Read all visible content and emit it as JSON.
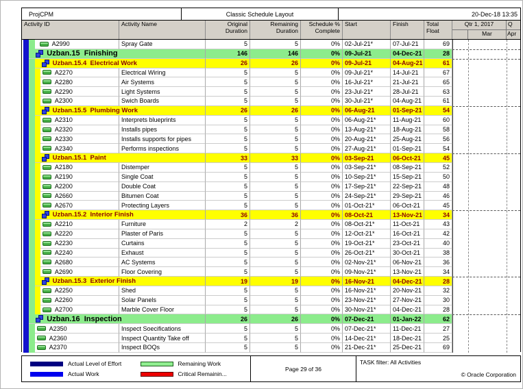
{
  "title_bar": {
    "left": "ProjCPM",
    "center": "Classic Schedule Layout",
    "right": "20-Dec-18 13:35"
  },
  "columns": {
    "activity_id": "Activity ID",
    "activity_name": "Activity Name",
    "original_duration": "Original Duration",
    "remaining_duration": "Remaining\nDuration",
    "schedule_pct": "Schedule %\nComplete",
    "start": "Start",
    "finish": "Finish",
    "total_float": "Total Float"
  },
  "timeline": {
    "quarter1": "Qtr 1, 2017",
    "quarter2": "Q",
    "month_blank": "",
    "month1": "Mar",
    "month2": "Apr"
  },
  "colors": {
    "band_green": "#8cec8c",
    "band_yellow": "#ffff00",
    "project_strip_blue": "#1313cd",
    "group_label_maroon": "#8b0000",
    "header_gray": "#d4d0c8"
  },
  "rows": [
    {
      "kind": "activity",
      "strips": 2,
      "extra_indent": 4,
      "id": "A2990",
      "name": "Spray Gate",
      "orig_dur": "5",
      "rem_dur": "5",
      "pct": "0%",
      "start": "02-Jul-21*",
      "finish": "07-Jul-21",
      "total_float": "69"
    },
    {
      "kind": "group2",
      "dash": true,
      "label": "Uzban.15  Finishing",
      "orig_dur": "146",
      "rem_dur": "146",
      "pct": "0%",
      "start": "09-Jul-21",
      "finish": "04-Dec-21",
      "total_float": "28"
    },
    {
      "kind": "group3",
      "dash": true,
      "label": "Uzban.15.4  Electrical Work",
      "orig_dur": "26",
      "rem_dur": "26",
      "pct": "0%",
      "start": "09-Jul-21",
      "finish": "04-Aug-21",
      "total_float": "61"
    },
    {
      "kind": "activity",
      "strips": 3,
      "id": "A2270",
      "name": "Electrical Wiring",
      "orig_dur": "5",
      "rem_dur": "5",
      "pct": "0%",
      "start": "09-Jul-21*",
      "finish": "14-Jul-21",
      "total_float": "67"
    },
    {
      "kind": "activity",
      "strips": 3,
      "id": "A2280",
      "name": "Air Systems",
      "orig_dur": "5",
      "rem_dur": "5",
      "pct": "0%",
      "start": "16-Jul-21*",
      "finish": "21-Jul-21",
      "total_float": "65"
    },
    {
      "kind": "activity",
      "strips": 3,
      "id": "A2290",
      "name": "Light Systems",
      "orig_dur": "5",
      "rem_dur": "5",
      "pct": "0%",
      "start": "23-Jul-21*",
      "finish": "28-Jul-21",
      "total_float": "63"
    },
    {
      "kind": "activity",
      "strips": 3,
      "id": "A2300",
      "name": "Swich Boards",
      "orig_dur": "5",
      "rem_dur": "5",
      "pct": "0%",
      "start": "30-Jul-21*",
      "finish": "04-Aug-21",
      "total_float": "61"
    },
    {
      "kind": "group3",
      "dash": true,
      "label": "Uzban.15.5  Plumbing Work",
      "orig_dur": "26",
      "rem_dur": "26",
      "pct": "0%",
      "start": "06-Aug-21",
      "finish": "01-Sep-21",
      "total_float": "54"
    },
    {
      "kind": "activity",
      "strips": 3,
      "id": "A2310",
      "name": "Interprets blueprints",
      "orig_dur": "5",
      "rem_dur": "5",
      "pct": "0%",
      "start": "06-Aug-21*",
      "finish": "11-Aug-21",
      "total_float": "60"
    },
    {
      "kind": "activity",
      "strips": 3,
      "id": "A2320",
      "name": "Installs pipes",
      "orig_dur": "5",
      "rem_dur": "5",
      "pct": "0%",
      "start": "13-Aug-21*",
      "finish": "18-Aug-21",
      "total_float": "58"
    },
    {
      "kind": "activity",
      "strips": 3,
      "id": "A2330",
      "name": "Installs supports for pipes",
      "orig_dur": "5",
      "rem_dur": "5",
      "pct": "0%",
      "start": "20-Aug-21*",
      "finish": "25-Aug-21",
      "total_float": "56"
    },
    {
      "kind": "activity",
      "strips": 3,
      "id": "A2340",
      "name": "Performs inspections",
      "orig_dur": "5",
      "rem_dur": "5",
      "pct": "0%",
      "start": "27-Aug-21*",
      "finish": "01-Sep-21",
      "total_float": "54"
    },
    {
      "kind": "group3",
      "dash": true,
      "label": "Uzban.15.1  Paint",
      "orig_dur": "33",
      "rem_dur": "33",
      "pct": "0%",
      "start": "03-Sep-21",
      "finish": "06-Oct-21",
      "total_float": "45"
    },
    {
      "kind": "activity",
      "strips": 3,
      "id": "A2180",
      "name": "Distemper",
      "orig_dur": "5",
      "rem_dur": "5",
      "pct": "0%",
      "start": "03-Sep-21*",
      "finish": "08-Sep-21",
      "total_float": "52"
    },
    {
      "kind": "activity",
      "strips": 3,
      "id": "A2190",
      "name": "Single Coat",
      "orig_dur": "5",
      "rem_dur": "5",
      "pct": "0%",
      "start": "10-Sep-21*",
      "finish": "15-Sep-21",
      "total_float": "50"
    },
    {
      "kind": "activity",
      "strips": 3,
      "id": "A2200",
      "name": "Double Coat",
      "orig_dur": "5",
      "rem_dur": "5",
      "pct": "0%",
      "start": "17-Sep-21*",
      "finish": "22-Sep-21",
      "total_float": "48"
    },
    {
      "kind": "activity",
      "strips": 3,
      "id": "A2660",
      "name": "Bitumen Coat",
      "orig_dur": "5",
      "rem_dur": "5",
      "pct": "0%",
      "start": "24-Sep-21*",
      "finish": "29-Sep-21",
      "total_float": "46"
    },
    {
      "kind": "activity",
      "strips": 3,
      "id": "A2670",
      "name": "Protecting Layers",
      "orig_dur": "5",
      "rem_dur": "5",
      "pct": "0%",
      "start": "01-Oct-21*",
      "finish": "06-Oct-21",
      "total_float": "45"
    },
    {
      "kind": "group3",
      "dash": true,
      "label": "Uzban.15.2  Interior Finish",
      "orig_dur": "36",
      "rem_dur": "36",
      "pct": "0%",
      "start": "08-Oct-21",
      "finish": "13-Nov-21",
      "total_float": "34"
    },
    {
      "kind": "activity",
      "strips": 3,
      "id": "A2210",
      "name": "Furniture",
      "orig_dur": "2",
      "rem_dur": "2",
      "pct": "0%",
      "start": "08-Oct-21*",
      "finish": "11-Oct-21",
      "total_float": "43"
    },
    {
      "kind": "activity",
      "strips": 3,
      "id": "A2220",
      "name": "Plaster of Paris",
      "orig_dur": "5",
      "rem_dur": "5",
      "pct": "0%",
      "start": "12-Oct-21*",
      "finish": "16-Oct-21",
      "total_float": "42"
    },
    {
      "kind": "activity",
      "strips": 3,
      "id": "A2230",
      "name": "Curtains",
      "orig_dur": "5",
      "rem_dur": "5",
      "pct": "0%",
      "start": "19-Oct-21*",
      "finish": "23-Oct-21",
      "total_float": "40"
    },
    {
      "kind": "activity",
      "strips": 3,
      "id": "A2240",
      "name": "Exhaust",
      "orig_dur": "5",
      "rem_dur": "5",
      "pct": "0%",
      "start": "26-Oct-21*",
      "finish": "30-Oct-21",
      "total_float": "38"
    },
    {
      "kind": "activity",
      "strips": 3,
      "id": "A2680",
      "name": "AC Systems",
      "orig_dur": "5",
      "rem_dur": "5",
      "pct": "0%",
      "start": "02-Nov-21*",
      "finish": "06-Nov-21",
      "total_float": "36"
    },
    {
      "kind": "activity",
      "strips": 3,
      "id": "A2690",
      "name": "Floor Covering",
      "orig_dur": "5",
      "rem_dur": "5",
      "pct": "0%",
      "start": "09-Nov-21*",
      "finish": "13-Nov-21",
      "total_float": "34"
    },
    {
      "kind": "group3",
      "dash": true,
      "label": "Uzban.15.3  Exterior Finish",
      "orig_dur": "19",
      "rem_dur": "19",
      "pct": "0%",
      "start": "16-Nov-21",
      "finish": "04-Dec-21",
      "total_float": "28"
    },
    {
      "kind": "activity",
      "strips": 3,
      "id": "A2250",
      "name": "Shed",
      "orig_dur": "5",
      "rem_dur": "5",
      "pct": "0%",
      "start": "16-Nov-21*",
      "finish": "20-Nov-21",
      "total_float": "32"
    },
    {
      "kind": "activity",
      "strips": 3,
      "id": "A2260",
      "name": "Solar Panels",
      "orig_dur": "5",
      "rem_dur": "5",
      "pct": "0%",
      "start": "23-Nov-21*",
      "finish": "27-Nov-21",
      "total_float": "30"
    },
    {
      "kind": "activity",
      "strips": 3,
      "id": "A2700",
      "name": "Marble Cover Floor",
      "orig_dur": "5",
      "rem_dur": "5",
      "pct": "0%",
      "start": "30-Nov-21*",
      "finish": "04-Dec-21",
      "total_float": "28"
    },
    {
      "kind": "group2",
      "dash": true,
      "label": "Uzban.16  Inspection",
      "orig_dur": "26",
      "rem_dur": "26",
      "pct": "0%",
      "start": "07-Dec-21",
      "finish": "01-Jan-22",
      "total_float": "62"
    },
    {
      "kind": "activity",
      "strips": 2,
      "id": "A2350",
      "name": "Inspect Soecifications",
      "orig_dur": "5",
      "rem_dur": "5",
      "pct": "0%",
      "start": "07-Dec-21*",
      "finish": "11-Dec-21",
      "total_float": "27"
    },
    {
      "kind": "activity",
      "strips": 2,
      "id": "A2360",
      "name": "Inspect Quantity Take off",
      "orig_dur": "5",
      "rem_dur": "5",
      "pct": "0%",
      "start": "14-Dec-21*",
      "finish": "18-Dec-21",
      "total_float": "25"
    },
    {
      "kind": "activity",
      "strips": 2,
      "id": "A2370",
      "name": "Inspect BOQs",
      "orig_dur": "5",
      "rem_dur": "5",
      "pct": "0%",
      "start": "21-Dec-21*",
      "finish": "25-Dec-21",
      "total_float": "69"
    }
  ],
  "footer": {
    "page": "Page 29 of 36",
    "task_filter": "TASK filter: All Activities",
    "copyright": "© Oracle Corporation",
    "legend": [
      {
        "label": "Actual Level of Effort",
        "fill": "#000080",
        "border": "#000080"
      },
      {
        "label": "Remaining Work",
        "fill": "#90EE90",
        "border": "#1a5c1a"
      },
      {
        "label": "Actual Work",
        "fill": "#0000ee",
        "border": "#0000ee"
      },
      {
        "label": "Critical Remainin...",
        "fill": "#ee0000",
        "border": "#5a0000"
      }
    ]
  }
}
